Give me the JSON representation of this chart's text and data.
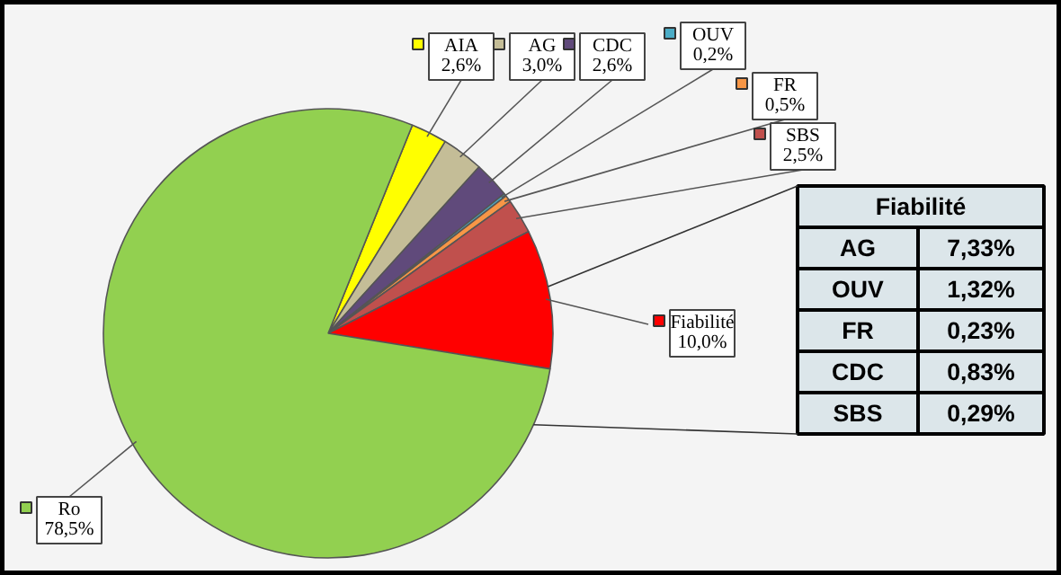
{
  "chart_data": [
    {
      "type": "pie",
      "categories": [
        "AIA",
        "AG",
        "CDC",
        "OUV",
        "FR",
        "SBS",
        "Fiabilité",
        "Ro"
      ],
      "values": [
        2.6,
        3.0,
        2.6,
        0.2,
        0.5,
        2.5,
        10.0,
        78.5
      ],
      "value_labels": [
        "2,6%",
        "3,0%",
        "2,6%",
        "0,2%",
        "0,5%",
        "2,5%",
        "10,0%",
        "78,5%"
      ],
      "colors": [
        "#ffff00",
        "#c4bd97",
        "#604a7b",
        "#4bacc6",
        "#f79646",
        "#c0504d",
        "#ff0000",
        "#92d050"
      ],
      "legend": "top right"
    },
    {
      "type": "other",
      "title": "Fiabilité",
      "categories": [
        "AG",
        "OUV",
        "FR",
        "CDC",
        "SBS"
      ],
      "value_labels": [
        "7,33%",
        "1,32%",
        "0,23%",
        "0,83%",
        "0,29%"
      ]
    }
  ]
}
